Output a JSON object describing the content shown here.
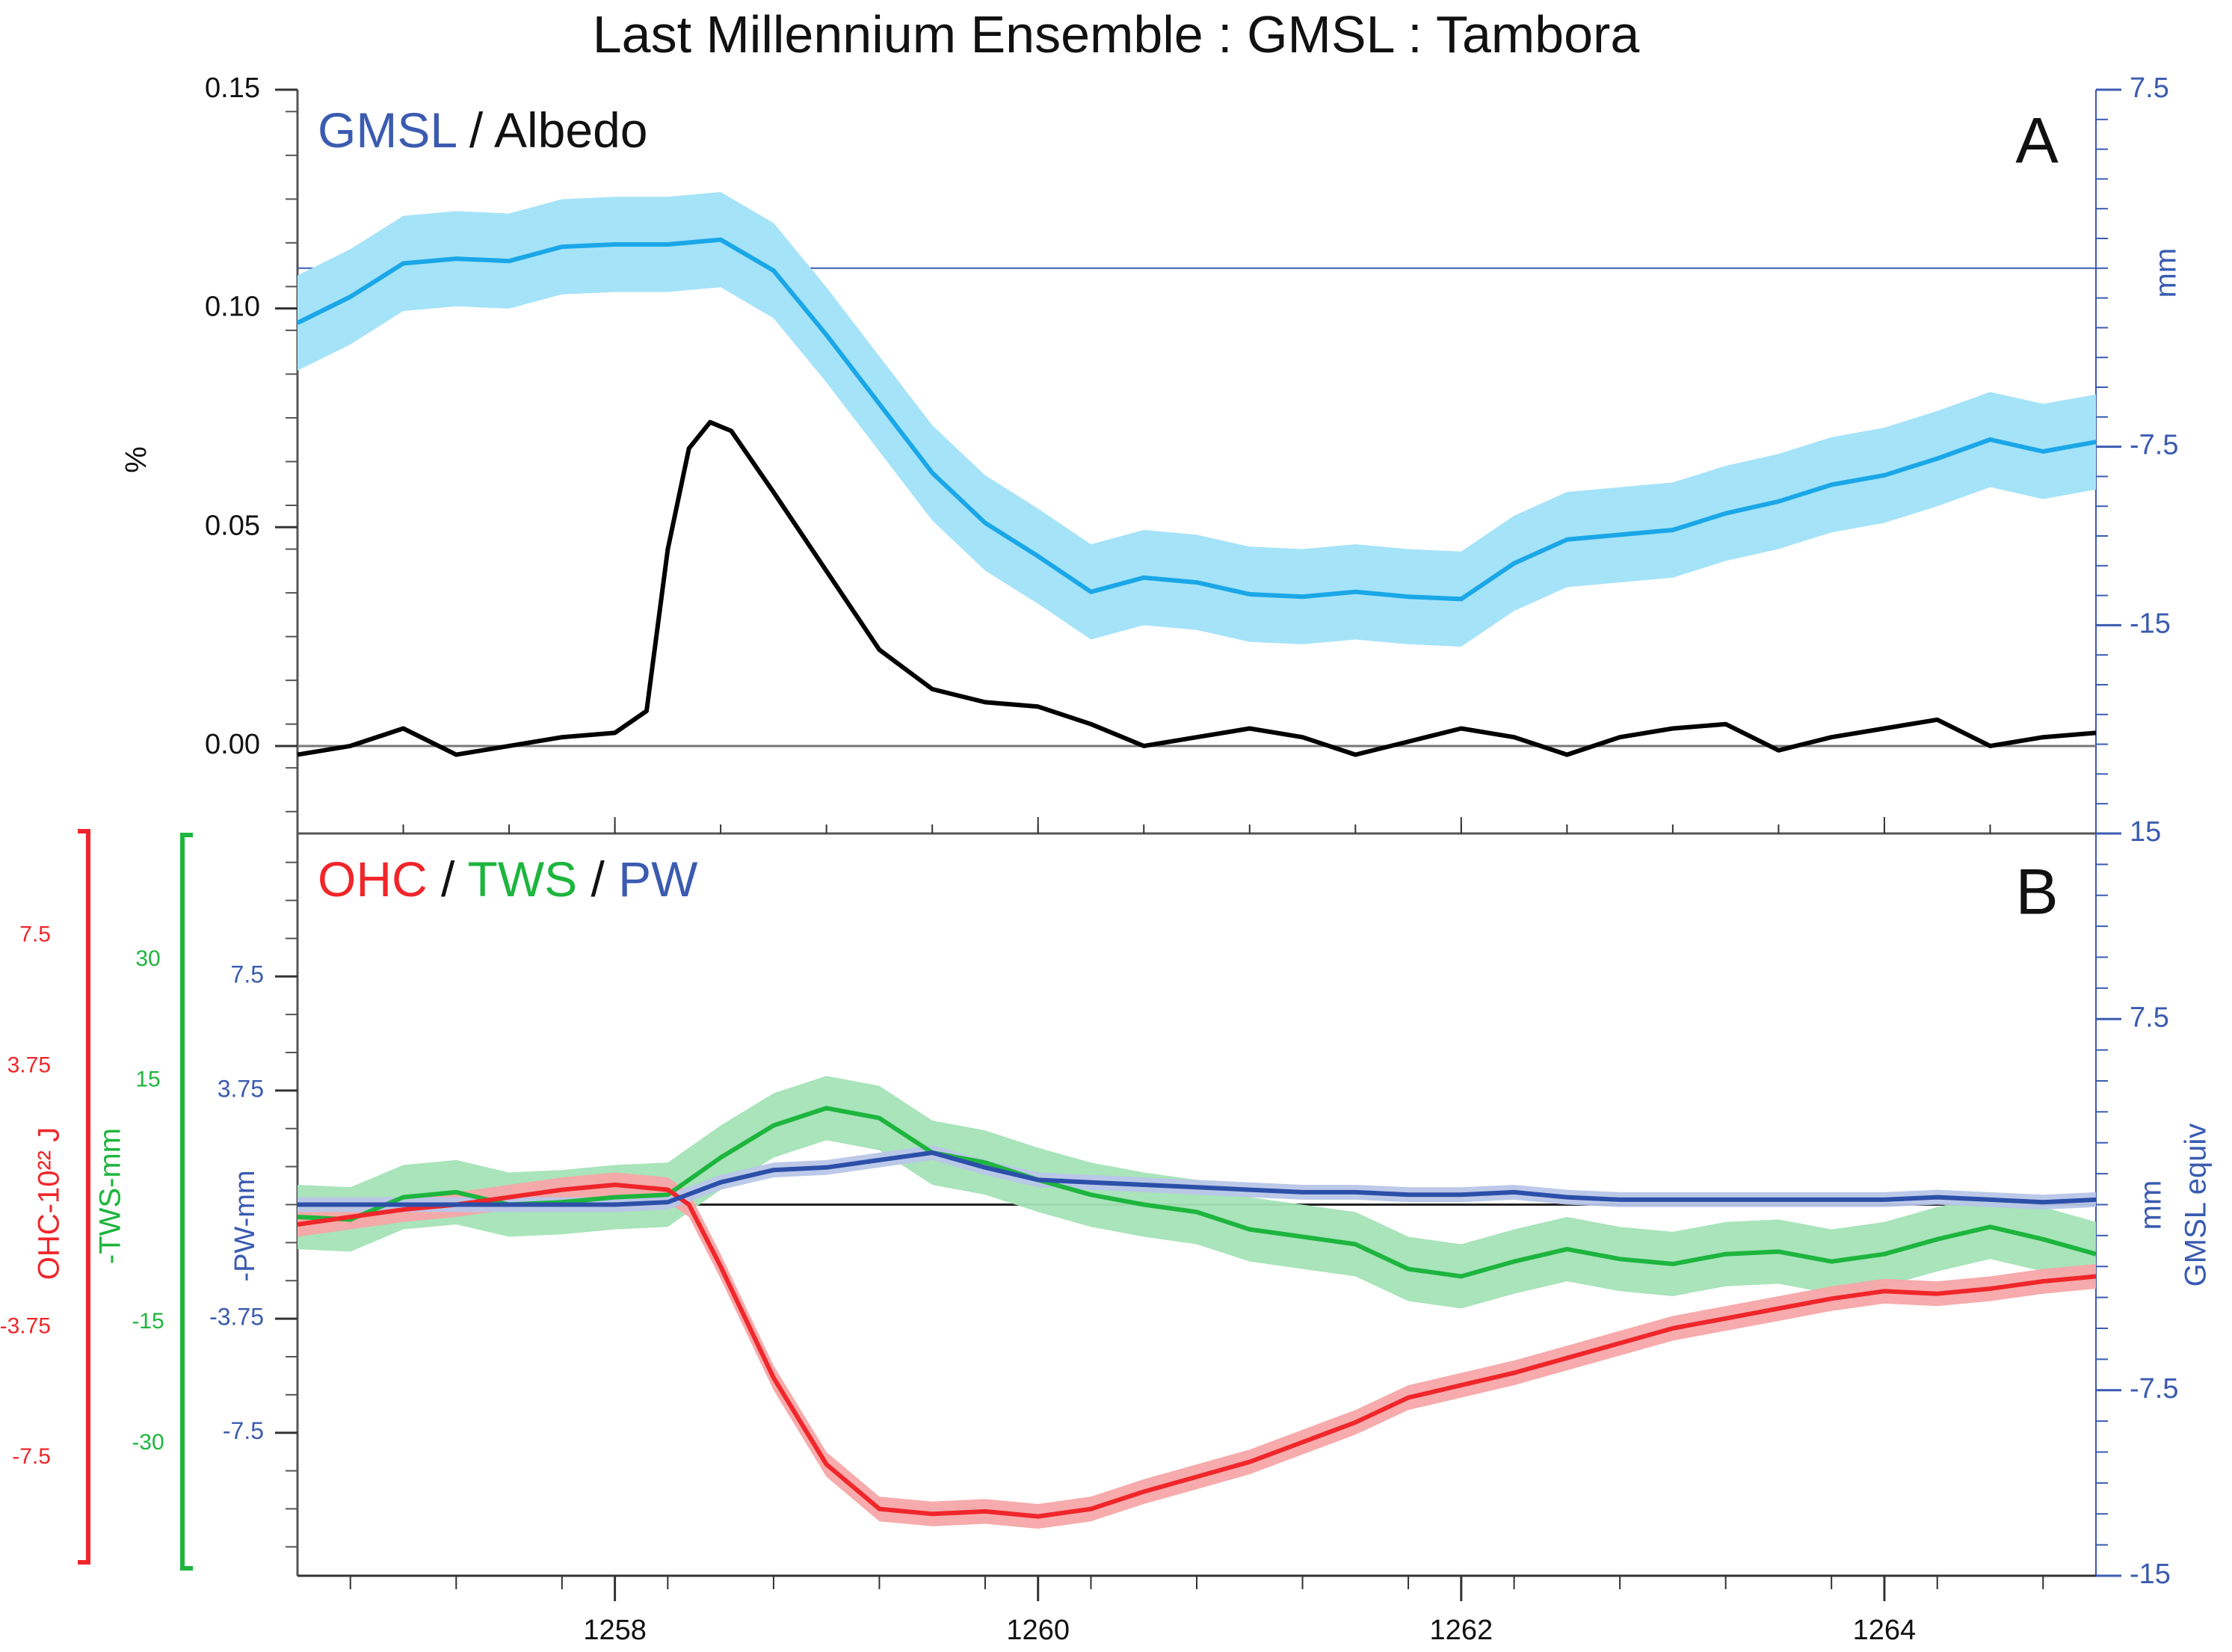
{
  "colors": {
    "gmsl": "#1aa7e8",
    "gmsl_band": "#a5e3f8",
    "albedo": "#000000",
    "ohc": "#f0262a",
    "ohc_band": "#f7a6a8",
    "tws": "#1db53e",
    "tws_band": "#a4e3b6",
    "pw": "#2c4fa8",
    "pw_band": "#b8c6e8",
    "axis_blue": "#3a5bb0",
    "axis_red": "#f0262a",
    "axis_green": "#1db53e"
  },
  "chart_data": [
    {
      "panel": "A",
      "type": "line",
      "title": "Last Millennium Ensemble : GMSL : Tambora",
      "panel_label": "A",
      "legend": {
        "gmsl": "GMSL",
        "sep": " / ",
        "albedo": "Albedo"
      },
      "xlim": [
        1256.5,
        1265
      ],
      "xticks": [
        "1258",
        "1260",
        "1262",
        "1264"
      ],
      "xtick_values": [
        1258,
        1260,
        1262,
        1264
      ],
      "left_axis": {
        "label": "%",
        "ylim": [
          -0.02,
          0.15
        ],
        "ticks": [
          "0.00",
          "0.05",
          "0.10",
          "0.15"
        ],
        "tick_values": [
          0,
          0.05,
          0.1,
          0.15
        ]
      },
      "right_axis": {
        "label": "mm",
        "ylim": [
          -23.75,
          7.5
        ],
        "ticks": [
          "7.5",
          "-7.5",
          "-15"
        ],
        "tick_values": [
          7.5,
          -7.5,
          -15
        ]
      },
      "reference_lines": {
        "gmsl_zero_mm": 0,
        "albedo_zero_pct": 0
      },
      "series": [
        {
          "name": "GMSL",
          "axis": "right",
          "uncertainty_mm": 2.0,
          "x": [
            1256.5,
            1256.75,
            1257.0,
            1257.25,
            1257.5,
            1257.75,
            1258.0,
            1258.25,
            1258.5,
            1258.75,
            1259.0,
            1259.25,
            1259.5,
            1259.75,
            1260.0,
            1260.25,
            1260.5,
            1260.75,
            1261.0,
            1261.25,
            1261.5,
            1261.75,
            1262.0,
            1262.25,
            1262.5,
            1262.75,
            1263.0,
            1263.25,
            1263.5,
            1263.75,
            1264.0,
            1264.25,
            1264.5,
            1264.75,
            1265.0
          ],
          "values": [
            -2.3,
            -1.2,
            0.2,
            0.4,
            0.3,
            0.9,
            1.0,
            1.0,
            1.2,
            -0.1,
            -2.8,
            -5.7,
            -8.6,
            -10.7,
            -12.1,
            -13.6,
            -13.0,
            -13.2,
            -13.7,
            -13.8,
            -13.6,
            -13.8,
            -13.9,
            -12.4,
            -11.4,
            -11.2,
            -11.0,
            -10.3,
            -9.8,
            -9.1,
            -8.7,
            -8.0,
            -7.2,
            -7.7,
            -7.3
          ]
        },
        {
          "name": "Albedo",
          "axis": "left",
          "x": [
            1256.5,
            1256.75,
            1257.0,
            1257.25,
            1257.5,
            1257.75,
            1258.0,
            1258.15,
            1258.25,
            1258.35,
            1258.45,
            1258.55,
            1258.75,
            1259.0,
            1259.25,
            1259.5,
            1259.75,
            1260.0,
            1260.25,
            1260.5,
            1260.75,
            1261.0,
            1261.25,
            1261.5,
            1261.75,
            1262.0,
            1262.25,
            1262.5,
            1262.75,
            1263.0,
            1263.25,
            1263.5,
            1263.75,
            1264.0,
            1264.25,
            1264.5,
            1264.75,
            1265.0
          ],
          "values": [
            -0.002,
            0.0,
            0.004,
            -0.002,
            0.0,
            0.002,
            0.003,
            0.008,
            0.045,
            0.068,
            0.074,
            0.072,
            0.058,
            0.04,
            0.022,
            0.013,
            0.01,
            0.009,
            0.005,
            0.0,
            0.002,
            0.004,
            0.002,
            -0.002,
            0.001,
            0.004,
            0.002,
            -0.002,
            0.002,
            0.004,
            0.005,
            -0.001,
            0.002,
            0.004,
            0.006,
            0.0,
            0.002,
            0.003
          ]
        }
      ]
    },
    {
      "panel": "B",
      "type": "line",
      "panel_label": "B",
      "legend": {
        "ohc": "OHC",
        "sep1": " / ",
        "tws": "TWS",
        "sep2": " / ",
        "pw": "PW"
      },
      "xlim": [
        1256.5,
        1265
      ],
      "gmsl_equiv_ylim": [
        -15,
        15
      ],
      "right_axis": {
        "label_mm": "mm",
        "label_equiv": "GMSL equiv",
        "ticks": [
          "15",
          "7.5",
          "-7.5",
          "-15"
        ],
        "tick_values": [
          15,
          7.5,
          -7.5,
          -15
        ]
      },
      "pw_axis": {
        "label": "-PW-mm",
        "ticks": [
          "7.5",
          "3.75",
          "-3.75",
          "-7.5"
        ],
        "tick_values": [
          7.5,
          3.75,
          -3.75,
          -7.5
        ]
      },
      "tws_axis": {
        "label": "-TWS-mm",
        "ticks": [
          "30",
          "15",
          "-15",
          "-30"
        ],
        "tick_values": [
          30,
          15,
          -15,
          -30
        ]
      },
      "ohc_axis": {
        "label": "OHC-10²² J",
        "ticks": [
          "7.5",
          "3.75",
          "-3.75",
          "-7.5"
        ],
        "tick_values": [
          7.5,
          3.75,
          -3.75,
          -7.5
        ]
      },
      "series": [
        {
          "name": "OHC",
          "uncertainty_gmsl_mm": 0.5,
          "x": [
            1256.5,
            1256.75,
            1257.0,
            1257.25,
            1257.5,
            1257.75,
            1258.0,
            1258.25,
            1258.35,
            1258.5,
            1258.75,
            1259.0,
            1259.25,
            1259.5,
            1259.75,
            1260.0,
            1260.25,
            1260.5,
            1260.75,
            1261.0,
            1261.25,
            1261.5,
            1261.75,
            1262.0,
            1262.25,
            1262.5,
            1262.75,
            1263.0,
            1263.25,
            1263.5,
            1263.75,
            1264.0,
            1264.25,
            1264.5,
            1264.75,
            1265.0
          ],
          "values": [
            -0.8,
            -0.5,
            -0.2,
            0.0,
            0.3,
            0.6,
            0.8,
            0.6,
            0.0,
            -2.5,
            -7.0,
            -10.5,
            -12.3,
            -12.5,
            -12.4,
            -12.6,
            -12.3,
            -11.6,
            -11.0,
            -10.4,
            -9.6,
            -8.8,
            -7.8,
            -7.3,
            -6.8,
            -6.2,
            -5.6,
            -5.0,
            -4.6,
            -4.2,
            -3.8,
            -3.5,
            -3.6,
            -3.4,
            -3.1,
            -2.9
          ]
        },
        {
          "name": "TWS",
          "uncertainty_gmsl_mm": 1.3,
          "x": [
            1256.5,
            1256.75,
            1257.0,
            1257.25,
            1257.5,
            1257.75,
            1258.0,
            1258.25,
            1258.5,
            1258.75,
            1259.0,
            1259.25,
            1259.5,
            1259.75,
            1260.0,
            1260.25,
            1260.5,
            1260.75,
            1261.0,
            1261.25,
            1261.5,
            1261.75,
            1262.0,
            1262.25,
            1262.5,
            1262.75,
            1263.0,
            1263.25,
            1263.5,
            1263.75,
            1264.0,
            1264.25,
            1264.5,
            1264.75,
            1265.0
          ],
          "values": [
            -0.5,
            -0.6,
            0.3,
            0.5,
            0.0,
            0.1,
            0.3,
            0.4,
            1.9,
            3.2,
            3.9,
            3.5,
            2.1,
            1.7,
            1.0,
            0.4,
            0.0,
            -0.3,
            -1.0,
            -1.3,
            -1.6,
            -2.6,
            -2.9,
            -2.3,
            -1.8,
            -2.2,
            -2.4,
            -2.0,
            -1.9,
            -2.3,
            -2.0,
            -1.4,
            -0.9,
            -1.4,
            -2.0
          ]
        },
        {
          "name": "PW",
          "uncertainty_gmsl_mm": 0.3,
          "x": [
            1256.5,
            1256.75,
            1257.0,
            1257.25,
            1257.5,
            1257.75,
            1258.0,
            1258.25,
            1258.5,
            1258.75,
            1259.0,
            1259.25,
            1259.5,
            1259.75,
            1260.0,
            1260.25,
            1260.5,
            1260.75,
            1261.0,
            1261.25,
            1261.5,
            1261.75,
            1262.0,
            1262.25,
            1262.5,
            1262.75,
            1263.0,
            1263.25,
            1263.5,
            1263.75,
            1264.0,
            1264.25,
            1264.5,
            1264.75,
            1265.0
          ],
          "values": [
            0.0,
            0.0,
            0.0,
            0.0,
            0.0,
            0.0,
            0.0,
            0.1,
            0.9,
            1.4,
            1.5,
            1.8,
            2.1,
            1.5,
            1.0,
            0.9,
            0.8,
            0.7,
            0.6,
            0.5,
            0.5,
            0.4,
            0.4,
            0.5,
            0.3,
            0.2,
            0.2,
            0.2,
            0.2,
            0.2,
            0.2,
            0.3,
            0.2,
            0.1,
            0.2
          ]
        }
      ]
    }
  ]
}
